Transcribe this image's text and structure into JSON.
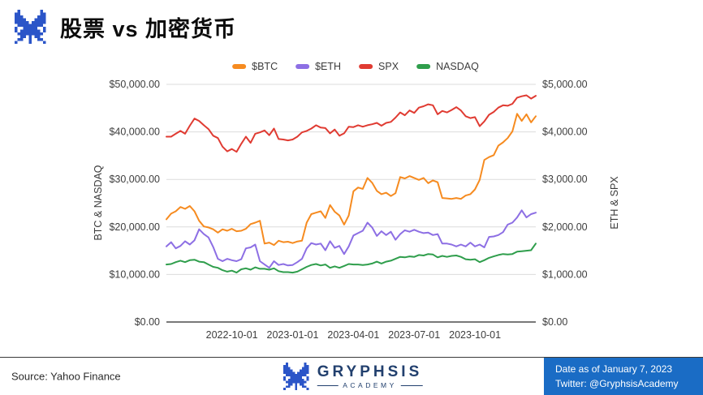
{
  "header": {
    "title": "股票 vs 加密货币"
  },
  "colors": {
    "logo_blue": "#2b55c8",
    "brand_navy": "#22406e",
    "footer_blue": "#1a6cc5"
  },
  "chart_data": {
    "type": "line",
    "left_axis_label": "BTC & NASDAQ",
    "right_axis_label": "ETH & SPX",
    "left_axis": {
      "max": 50000,
      "tick_labels": [
        "$0.00",
        "$10,000.00",
        "$20,000.00",
        "$30,000.00",
        "$40,000.00",
        "$50,000.00"
      ]
    },
    "right_axis": {
      "max": 5000,
      "tick_labels": [
        "$0.00",
        "$1,000.00",
        "$2,000.00",
        "$3,000.00",
        "$4,000.00",
        "$5,000.00"
      ]
    },
    "x_tick_labels": [
      "2022-10-01",
      "2023-01-01",
      "2023-04-01",
      "2023-07-01",
      "2023-10-01"
    ],
    "x_tick_indices": [
      14,
      27,
      40,
      53,
      66
    ],
    "grid": "horizontal",
    "legend_position": "top",
    "series": [
      {
        "name": "$BTC",
        "color": "#f68b20",
        "axis": "left",
        "values": [
          21600,
          22800,
          23300,
          24200,
          23800,
          24400,
          23300,
          21300,
          20100,
          19900,
          19500,
          18800,
          19500,
          19200,
          19600,
          19100,
          19200,
          19600,
          20600,
          20900,
          21300,
          16500,
          16700,
          16200,
          17100,
          16800,
          16900,
          16600,
          16950,
          17100,
          20900,
          22700,
          23000,
          23300,
          21900,
          24600,
          23200,
          22400,
          20500,
          22400,
          27500,
          28300,
          28000,
          30300,
          29300,
          27600,
          26900,
          27200,
          26500,
          27100,
          30500,
          30200,
          30700,
          30300,
          29900,
          30300,
          29200,
          29800,
          29400,
          26100,
          26000,
          25900,
          26100,
          25900,
          26600,
          26900,
          27900,
          29900,
          34100,
          34700,
          35100,
          37100,
          37800,
          38700,
          40100,
          43800,
          42300,
          43700,
          42000,
          43300
        ]
      },
      {
        "name": "$ETH",
        "color": "#8d6fe4",
        "axis": "right",
        "values": [
          1590,
          1680,
          1550,
          1600,
          1700,
          1630,
          1720,
          1950,
          1850,
          1780,
          1580,
          1330,
          1280,
          1330,
          1300,
          1280,
          1320,
          1550,
          1570,
          1630,
          1280,
          1210,
          1140,
          1280,
          1200,
          1220,
          1190,
          1200,
          1260,
          1330,
          1550,
          1660,
          1630,
          1650,
          1510,
          1700,
          1560,
          1600,
          1430,
          1590,
          1820,
          1870,
          1920,
          2090,
          1990,
          1810,
          1910,
          1830,
          1900,
          1730,
          1850,
          1930,
          1900,
          1940,
          1900,
          1870,
          1880,
          1830,
          1850,
          1650,
          1650,
          1630,
          1590,
          1630,
          1590,
          1670,
          1590,
          1630,
          1570,
          1790,
          1800,
          1830,
          1890,
          2050,
          2090,
          2200,
          2350,
          2200,
          2270,
          2300
        ]
      },
      {
        "name": "SPX",
        "color": "#e03b32",
        "axis": "right",
        "values": [
          3900,
          3900,
          3960,
          4020,
          3960,
          4130,
          4280,
          4230,
          4140,
          4060,
          3920,
          3870,
          3690,
          3590,
          3640,
          3580,
          3750,
          3900,
          3770,
          3960,
          3990,
          4030,
          3930,
          4070,
          3850,
          3840,
          3820,
          3840,
          3900,
          3990,
          4020,
          4070,
          4140,
          4090,
          4080,
          3970,
          4050,
          3920,
          3970,
          4110,
          4100,
          4140,
          4110,
          4140,
          4160,
          4190,
          4130,
          4190,
          4210,
          4300,
          4410,
          4350,
          4450,
          4400,
          4510,
          4540,
          4580,
          4560,
          4370,
          4440,
          4410,
          4460,
          4520,
          4450,
          4330,
          4290,
          4310,
          4120,
          4220,
          4360,
          4420,
          4510,
          4560,
          4550,
          4590,
          4720,
          4750,
          4770,
          4700,
          4760
        ]
      },
      {
        "name": "NASDAQ",
        "color": "#2f9e4c",
        "axis": "left",
        "values": [
          12100,
          12200,
          12600,
          12900,
          12600,
          13000,
          13100,
          12700,
          12600,
          12100,
          11600,
          11400,
          10900,
          10600,
          10800,
          10400,
          11100,
          11300,
          11000,
          11500,
          11200,
          11200,
          11000,
          11300,
          10700,
          10500,
          10500,
          10400,
          10600,
          11100,
          11600,
          12000,
          12200,
          11900,
          12100,
          11400,
          11700,
          11400,
          11800,
          12200,
          12100,
          12100,
          12000,
          12100,
          12300,
          12700,
          12300,
          12700,
          12900,
          13300,
          13700,
          13600,
          13800,
          13700,
          14100,
          14000,
          14300,
          14200,
          13600,
          13900,
          13700,
          13900,
          14000,
          13700,
          13200,
          13100,
          13200,
          12600,
          13000,
          13500,
          13800,
          14100,
          14300,
          14200,
          14300,
          14800,
          14900,
          15000,
          15100,
          16500
        ]
      }
    ]
  },
  "footer": {
    "source": "Source: Yahoo Finance",
    "brand": "GRYPHSIS",
    "brand_sub": "ACADEMY",
    "date_note": "Date as of January 7, 2023",
    "twitter_note": "Twitter: @GryphsisAcademy"
  }
}
